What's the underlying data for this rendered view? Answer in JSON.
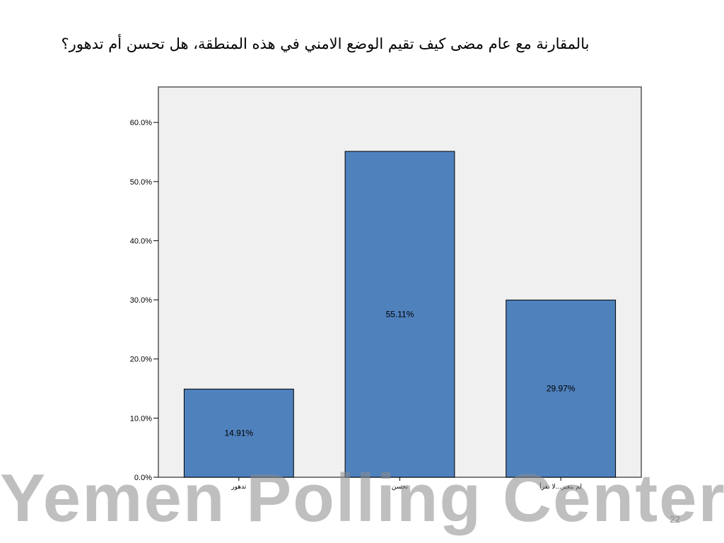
{
  "slide": {
    "title": "بالمقارنة مع عام مضى كيف تقيم الوضع الامني في هذه المنطقة، هل تحسن أم تدهور؟",
    "watermark": "Yemen Polling Center",
    "page_number": "22"
  },
  "chart_data": {
    "type": "bar",
    "title": "بالمقارنة مع عام مضى كيف تقيم الوضع الامني في هذه المنطقة، هل تحسن أم تدهور؟",
    "categories": [
      "تدهور",
      "تحسن",
      "لم يتغير...لا تغرأ"
    ],
    "values": [
      14.91,
      55.11,
      29.97
    ],
    "data_labels": [
      "14.91%",
      "55.11%",
      "29.97%"
    ],
    "ylim": [
      0,
      66
    ],
    "yticks": [
      0,
      10,
      20,
      30,
      40,
      50,
      60
    ],
    "ytick_labels": [
      "0.0%",
      "10.0%",
      "20.0%",
      "30.0%",
      "40.0%",
      "50.0%",
      "60.0%"
    ],
    "xlabel": "",
    "ylabel": "",
    "grid": false,
    "colors": {
      "bar": "#4f81bd",
      "bar_border": "#000000",
      "plot_background": "#f0f0f0",
      "plot_border": "#555555"
    }
  }
}
